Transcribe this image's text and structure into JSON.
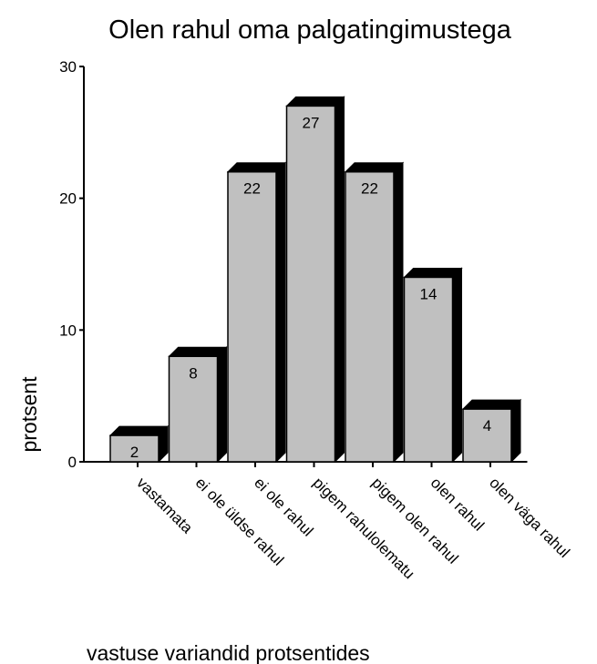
{
  "chart_data": {
    "type": "bar",
    "title": "Olen rahul oma palgatingimustega",
    "xlabel": "vastuse variandid protsentides",
    "ylabel": "protsent",
    "categories": [
      "vastamata",
      "ei ole üldse rahul",
      "ei ole rahul",
      "pigem rahulolematu",
      "pigem olen rahul",
      "olen rahul",
      "olen väga rahul"
    ],
    "values": [
      2,
      8,
      22,
      27,
      22,
      14,
      4
    ],
    "data_labels": [
      "2",
      "8",
      "22",
      "27",
      "22",
      "14",
      "4"
    ],
    "ylim": [
      0,
      30
    ],
    "yticks": [
      0,
      10,
      20,
      30
    ],
    "ytick_labels": [
      "0",
      "10",
      "20",
      "30"
    ],
    "grid": false,
    "bar_face_color": "#c0c0c0",
    "bar_shadow_color": "#000000"
  }
}
